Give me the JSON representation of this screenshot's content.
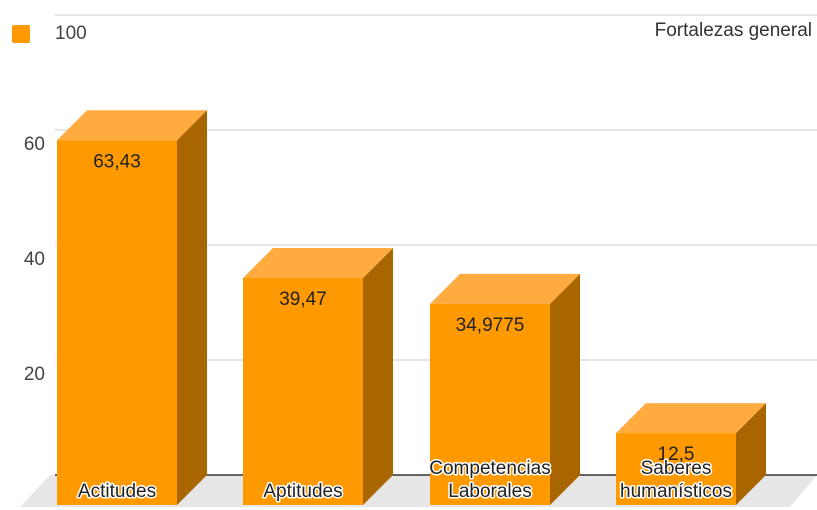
{
  "chart_data": {
    "type": "bar3d",
    "title": "Fortalezas general",
    "categories": [
      "Actitudes",
      "Aptitudes",
      "Competencias Laborales",
      "Saberes humanísticos"
    ],
    "series": [
      {
        "name": "100",
        "color": "#ff9900",
        "values": [
          63.43,
          39.47,
          34.9775,
          12.5
        ],
        "value_labels": [
          "63,43",
          "39,47",
          "34,9775",
          "12,5"
        ]
      }
    ],
    "ylim": [
      0,
      80
    ],
    "yticks": [
      20,
      40,
      60
    ],
    "grid": true,
    "legend": "top-left"
  }
}
